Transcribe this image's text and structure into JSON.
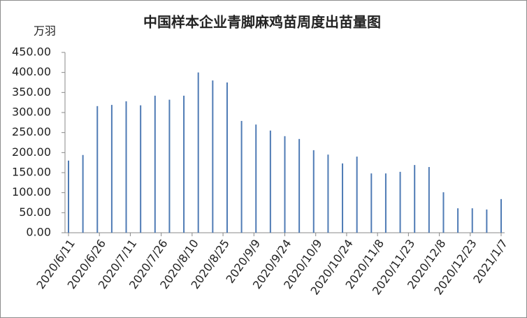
{
  "chart_data": {
    "type": "bar",
    "title": "中国样本企业青脚麻鸡苗周度出苗量图",
    "y_unit": "万羽",
    "x": [
      "2020/6/11",
      "2020/6/18",
      "2020/6/25",
      "2020/7/2",
      "2020/7/9",
      "2020/7/16",
      "2020/7/23",
      "2020/7/30",
      "2020/8/6",
      "2020/8/13",
      "2020/8/20",
      "2020/8/27",
      "2020/9/3",
      "2020/9/10",
      "2020/9/17",
      "2020/9/24",
      "2020/10/1",
      "2020/10/8",
      "2020/10/15",
      "2020/10/22",
      "2020/10/29",
      "2020/11/5",
      "2020/11/12",
      "2020/11/19",
      "2020/11/26",
      "2020/12/3",
      "2020/12/10",
      "2020/12/17",
      "2020/12/24",
      "2020/12/31",
      "2021/1/7"
    ],
    "values": [
      180,
      194,
      316,
      319,
      328,
      318,
      342,
      332,
      342,
      400,
      380,
      375,
      279,
      270,
      255,
      241,
      234,
      206,
      195,
      173,
      190,
      148,
      148,
      152,
      169,
      164,
      101,
      61,
      61,
      58,
      84
    ],
    "color": "#4f7bb5",
    "xlim": [
      "2020/6/11",
      "2021/1/7"
    ],
    "xticks": [
      "2020/6/11",
      "2020/6/26",
      "2020/7/11",
      "2020/7/26",
      "2020/8/10",
      "2020/8/25",
      "2020/9/9",
      "2020/9/24",
      "2020/10/9",
      "2020/10/24",
      "2020/11/8",
      "2020/11/23",
      "2020/12/8",
      "2020/12/23",
      "2021/1/7"
    ],
    "ylim": [
      0,
      450
    ],
    "yticks": [
      {
        "value": 0,
        "label": "0.00"
      },
      {
        "value": 50,
        "label": "50.00"
      },
      {
        "value": 100,
        "label": "100.00"
      },
      {
        "value": 150,
        "label": "150.00"
      },
      {
        "value": 200,
        "label": "200.00"
      },
      {
        "value": 250,
        "label": "250.00"
      },
      {
        "value": 300,
        "label": "300.00"
      },
      {
        "value": 350,
        "label": "350.00"
      },
      {
        "value": 400,
        "label": "400.00"
      },
      {
        "value": 450,
        "label": "450.00"
      }
    ],
    "grid": false
  }
}
